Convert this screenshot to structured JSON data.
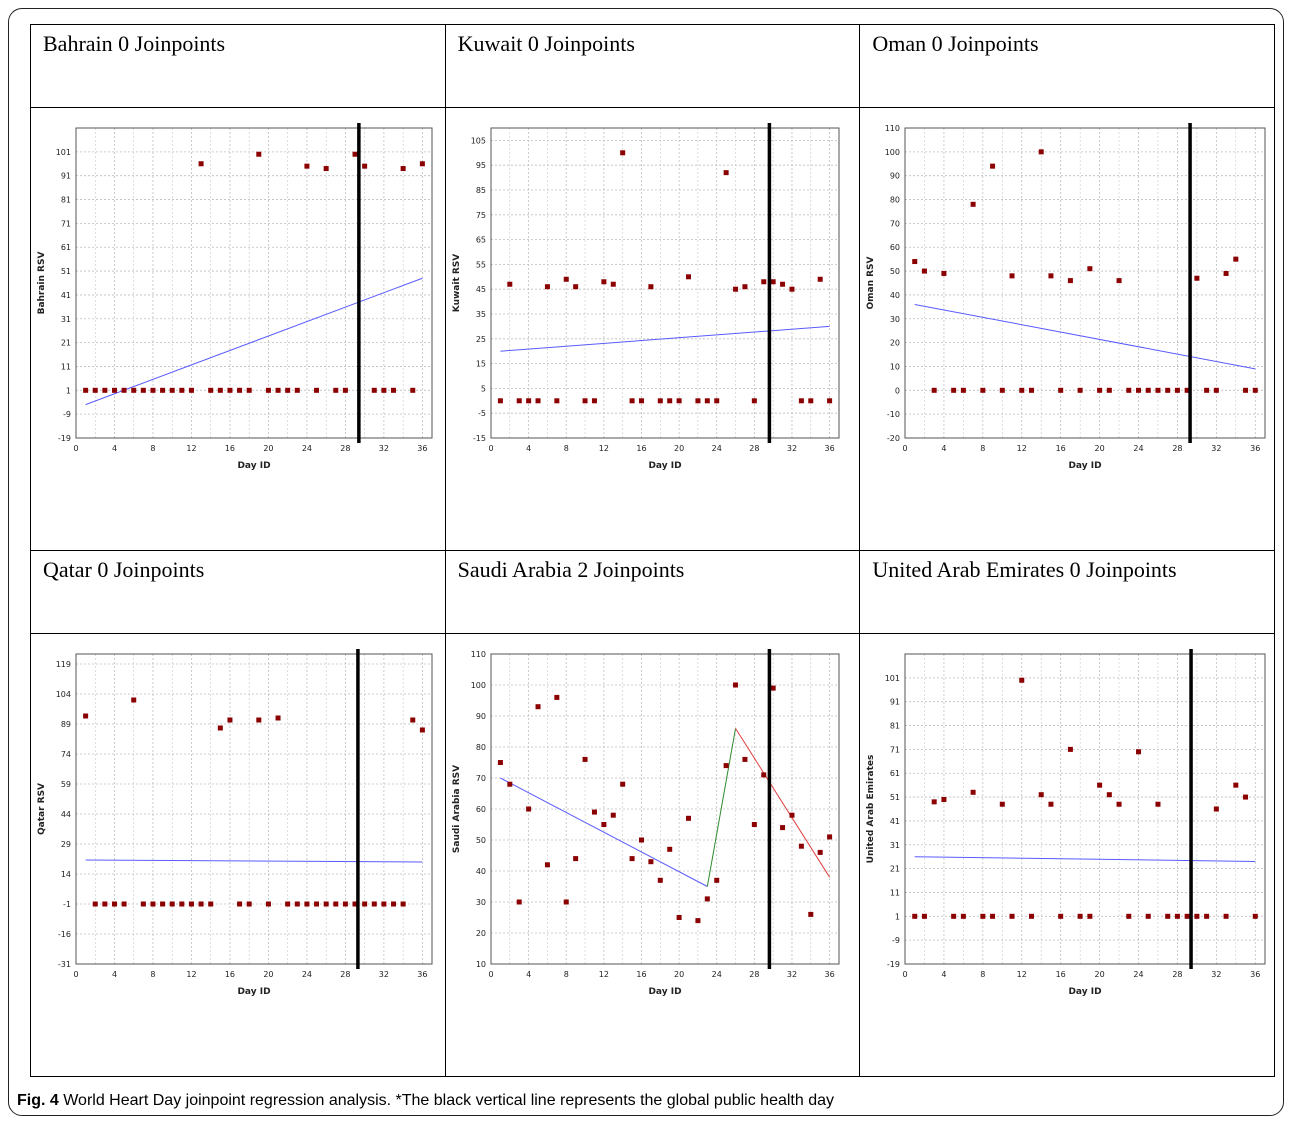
{
  "caption": {
    "label": "Fig. 4",
    "text": "World Heart Day joinpoint regression analysis. *The black vertical line represents the global public health day"
  },
  "colors": {
    "point": "#8b0000",
    "trend_blue": "#5a5aff",
    "trend_green": "#2e8b2e",
    "trend_red": "#e04040",
    "event_line": "#000000",
    "grid": "#bdbdbd"
  },
  "chart_data": [
    {
      "type": "scatter",
      "title": "Bahrain 0 Joinpoints",
      "xlabel": "Day ID",
      "ylabel": "Bahrain RSV",
      "xlim": [
        0,
        37
      ],
      "ylim": [
        -19,
        111
      ],
      "xticks": [
        0,
        4,
        8,
        12,
        16,
        20,
        24,
        28,
        32,
        36
      ],
      "yticks": [
        -19,
        -9,
        1,
        11,
        21,
        31,
        41,
        51,
        61,
        71,
        81,
        91,
        101
      ],
      "event_x": 29.4,
      "points": [
        [
          1,
          1
        ],
        [
          2,
          1
        ],
        [
          3,
          1
        ],
        [
          4,
          1
        ],
        [
          5,
          1
        ],
        [
          6,
          1
        ],
        [
          7,
          1
        ],
        [
          8,
          1
        ],
        [
          9,
          1
        ],
        [
          10,
          1
        ],
        [
          11,
          1
        ],
        [
          12,
          1
        ],
        [
          13,
          96
        ],
        [
          14,
          1
        ],
        [
          15,
          1
        ],
        [
          16,
          1
        ],
        [
          17,
          1
        ],
        [
          18,
          1
        ],
        [
          19,
          100
        ],
        [
          20,
          1
        ],
        [
          21,
          1
        ],
        [
          22,
          1
        ],
        [
          23,
          1
        ],
        [
          24,
          95
        ],
        [
          25,
          1
        ],
        [
          26,
          94
        ],
        [
          27,
          1
        ],
        [
          28,
          1
        ],
        [
          29,
          100
        ],
        [
          30,
          95
        ],
        [
          31,
          1
        ],
        [
          32,
          1
        ],
        [
          33,
          1
        ],
        [
          34,
          94
        ],
        [
          35,
          1
        ],
        [
          36,
          96
        ]
      ],
      "segments": [
        {
          "x0": 1,
          "y0": -5,
          "x1": 36,
          "y1": 48,
          "color": "blue"
        }
      ]
    },
    {
      "type": "scatter",
      "title": "Kuwait 0 Joinpoints",
      "xlabel": "Day ID",
      "ylabel": "Kuwait RSV",
      "xlim": [
        0,
        37
      ],
      "ylim": [
        -15,
        110
      ],
      "xticks": [
        0,
        4,
        8,
        12,
        16,
        20,
        24,
        28,
        32,
        36
      ],
      "yticks": [
        -15,
        -5,
        5,
        15,
        25,
        35,
        45,
        55,
        65,
        75,
        85,
        95,
        105
      ],
      "event_x": 29.6,
      "points": [
        [
          1,
          0
        ],
        [
          2,
          47
        ],
        [
          3,
          0
        ],
        [
          4,
          0
        ],
        [
          5,
          0
        ],
        [
          6,
          46
        ],
        [
          7,
          0
        ],
        [
          8,
          49
        ],
        [
          9,
          46
        ],
        [
          10,
          0
        ],
        [
          11,
          0
        ],
        [
          12,
          48
        ],
        [
          13,
          47
        ],
        [
          14,
          100
        ],
        [
          15,
          0
        ],
        [
          16,
          0
        ],
        [
          17,
          46
        ],
        [
          18,
          0
        ],
        [
          19,
          0
        ],
        [
          20,
          0
        ],
        [
          21,
          50
        ],
        [
          22,
          0
        ],
        [
          23,
          0
        ],
        [
          24,
          0
        ],
        [
          25,
          92
        ],
        [
          26,
          45
        ],
        [
          27,
          46
        ],
        [
          28,
          0
        ],
        [
          29,
          48
        ],
        [
          30,
          48
        ],
        [
          31,
          47
        ],
        [
          32,
          45
        ],
        [
          33,
          0
        ],
        [
          34,
          0
        ],
        [
          35,
          49
        ],
        [
          36,
          0
        ]
      ],
      "segments": [
        {
          "x0": 1,
          "y0": 20,
          "x1": 36,
          "y1": 30,
          "color": "blue"
        }
      ]
    },
    {
      "type": "scatter",
      "title": "Oman 0 Joinpoints",
      "xlabel": "Day ID",
      "ylabel": "Oman RSV",
      "xlim": [
        0,
        37
      ],
      "ylim": [
        -20,
        110
      ],
      "xticks": [
        0,
        4,
        8,
        12,
        16,
        20,
        24,
        28,
        32,
        36
      ],
      "yticks": [
        -20,
        -10,
        0,
        10,
        20,
        30,
        40,
        50,
        60,
        70,
        80,
        90,
        100,
        110
      ],
      "event_x": 29.3,
      "points": [
        [
          1,
          54
        ],
        [
          2,
          50
        ],
        [
          3,
          0
        ],
        [
          4,
          49
        ],
        [
          5,
          0
        ],
        [
          6,
          0
        ],
        [
          7,
          78
        ],
        [
          8,
          0
        ],
        [
          9,
          94
        ],
        [
          10,
          0
        ],
        [
          11,
          48
        ],
        [
          12,
          0
        ],
        [
          13,
          0
        ],
        [
          14,
          100
        ],
        [
          15,
          48
        ],
        [
          16,
          0
        ],
        [
          17,
          46
        ],
        [
          18,
          0
        ],
        [
          19,
          51
        ],
        [
          20,
          0
        ],
        [
          21,
          0
        ],
        [
          22,
          46
        ],
        [
          23,
          0
        ],
        [
          24,
          0
        ],
        [
          25,
          0
        ],
        [
          26,
          0
        ],
        [
          27,
          0
        ],
        [
          28,
          0
        ],
        [
          29,
          0
        ],
        [
          30,
          47
        ],
        [
          31,
          0
        ],
        [
          32,
          0
        ],
        [
          33,
          49
        ],
        [
          34,
          55
        ],
        [
          35,
          0
        ],
        [
          36,
          0
        ]
      ],
      "segments": [
        {
          "x0": 1,
          "y0": 36,
          "x1": 36,
          "y1": 9,
          "color": "blue"
        }
      ]
    },
    {
      "type": "scatter",
      "title": "Qatar 0 Joinpoints",
      "xlabel": "Day ID",
      "ylabel": "Qatar RSV",
      "xlim": [
        0,
        37
      ],
      "ylim": [
        -31,
        124
      ],
      "xticks": [
        0,
        4,
        8,
        12,
        16,
        20,
        24,
        28,
        32,
        36
      ],
      "yticks": [
        -31,
        -16,
        -1,
        14,
        29,
        44,
        59,
        74,
        89,
        104,
        119
      ],
      "event_x": 29.3,
      "points": [
        [
          1,
          93
        ],
        [
          2,
          -1
        ],
        [
          3,
          -1
        ],
        [
          4,
          -1
        ],
        [
          5,
          -1
        ],
        [
          6,
          101
        ],
        [
          7,
          -1
        ],
        [
          8,
          -1
        ],
        [
          9,
          -1
        ],
        [
          10,
          -1
        ],
        [
          11,
          -1
        ],
        [
          12,
          -1
        ],
        [
          13,
          -1
        ],
        [
          14,
          -1
        ],
        [
          15,
          87
        ],
        [
          16,
          91
        ],
        [
          17,
          -1
        ],
        [
          18,
          -1
        ],
        [
          19,
          91
        ],
        [
          20,
          -1
        ],
        [
          21,
          92
        ],
        [
          22,
          -1
        ],
        [
          23,
          -1
        ],
        [
          24,
          -1
        ],
        [
          25,
          -1
        ],
        [
          26,
          -1
        ],
        [
          27,
          -1
        ],
        [
          28,
          -1
        ],
        [
          29,
          -1
        ],
        [
          30,
          -1
        ],
        [
          31,
          -1
        ],
        [
          32,
          -1
        ],
        [
          33,
          -1
        ],
        [
          34,
          -1
        ],
        [
          35,
          91
        ],
        [
          36,
          86
        ]
      ],
      "segments": [
        {
          "x0": 1,
          "y0": 21,
          "x1": 36,
          "y1": 20,
          "color": "blue"
        }
      ]
    },
    {
      "type": "scatter",
      "title": "Saudi Arabia 2 Joinpoints",
      "xlabel": "Day ID",
      "ylabel": "Saudi Arabia RSV",
      "xlim": [
        0,
        37
      ],
      "ylim": [
        10,
        110
      ],
      "xticks": [
        0,
        4,
        8,
        12,
        16,
        20,
        24,
        28,
        32,
        36
      ],
      "yticks": [
        10,
        20,
        30,
        40,
        50,
        60,
        70,
        80,
        90,
        100,
        110
      ],
      "event_x": 29.6,
      "points": [
        [
          1,
          75
        ],
        [
          2,
          68
        ],
        [
          3,
          30
        ],
        [
          4,
          60
        ],
        [
          5,
          93
        ],
        [
          6,
          42
        ],
        [
          7,
          96
        ],
        [
          8,
          30
        ],
        [
          9,
          44
        ],
        [
          10,
          76
        ],
        [
          11,
          59
        ],
        [
          12,
          55
        ],
        [
          13,
          58
        ],
        [
          14,
          68
        ],
        [
          15,
          44
        ],
        [
          16,
          50
        ],
        [
          17,
          43
        ],
        [
          18,
          37
        ],
        [
          19,
          47
        ],
        [
          20,
          25
        ],
        [
          21,
          57
        ],
        [
          22,
          24
        ],
        [
          23,
          31
        ],
        [
          24,
          37
        ],
        [
          25,
          74
        ],
        [
          26,
          100
        ],
        [
          27,
          76
        ],
        [
          28,
          55
        ],
        [
          29,
          71
        ],
        [
          30,
          99
        ],
        [
          31,
          54
        ],
        [
          32,
          58
        ],
        [
          33,
          48
        ],
        [
          34,
          26
        ],
        [
          35,
          46
        ],
        [
          36,
          51
        ]
      ],
      "segments": [
        {
          "x0": 1,
          "y0": 70,
          "x1": 23,
          "y1": 35,
          "color": "blue"
        },
        {
          "x0": 23,
          "y0": 35,
          "x1": 26,
          "y1": 86,
          "color": "green"
        },
        {
          "x0": 26,
          "y0": 86,
          "x1": 36,
          "y1": 38,
          "color": "red"
        }
      ]
    },
    {
      "type": "scatter",
      "title": "United Arab Emirates 0 Joinpoints",
      "xlabel": "Day ID",
      "ylabel": "United Arab Emirates",
      "xlim": [
        0,
        37
      ],
      "ylim": [
        -19,
        111
      ],
      "xticks": [
        0,
        4,
        8,
        12,
        16,
        20,
        24,
        28,
        32,
        36
      ],
      "yticks": [
        -19,
        -9,
        1,
        11,
        21,
        31,
        41,
        51,
        61,
        71,
        81,
        91,
        101
      ],
      "event_x": 29.4,
      "points": [
        [
          1,
          1
        ],
        [
          2,
          1
        ],
        [
          3,
          49
        ],
        [
          4,
          50
        ],
        [
          5,
          1
        ],
        [
          6,
          1
        ],
        [
          7,
          53
        ],
        [
          8,
          1
        ],
        [
          9,
          1
        ],
        [
          10,
          48
        ],
        [
          11,
          1
        ],
        [
          12,
          100
        ],
        [
          13,
          1
        ],
        [
          14,
          52
        ],
        [
          15,
          48
        ],
        [
          16,
          1
        ],
        [
          17,
          71
        ],
        [
          18,
          1
        ],
        [
          19,
          1
        ],
        [
          20,
          56
        ],
        [
          21,
          52
        ],
        [
          22,
          48
        ],
        [
          23,
          1
        ],
        [
          24,
          70
        ],
        [
          25,
          1
        ],
        [
          26,
          48
        ],
        [
          27,
          1
        ],
        [
          28,
          1
        ],
        [
          29,
          1
        ],
        [
          30,
          1
        ],
        [
          31,
          1
        ],
        [
          32,
          46
        ],
        [
          33,
          1
        ],
        [
          34,
          56
        ],
        [
          35,
          51
        ],
        [
          36,
          1
        ]
      ],
      "segments": [
        {
          "x0": 1,
          "y0": 26,
          "x1": 36,
          "y1": 24,
          "color": "blue"
        }
      ]
    }
  ]
}
